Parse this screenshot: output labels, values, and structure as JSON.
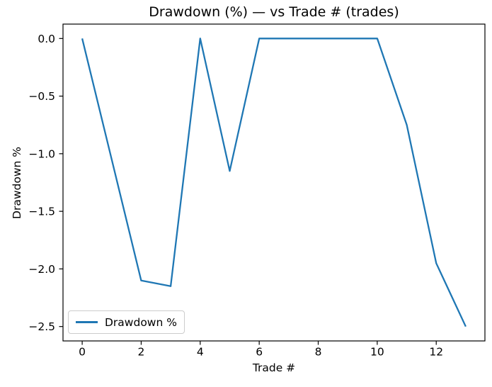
{
  "chart_data": {
    "type": "line",
    "title": "Drawdown (%) — vs Trade # (trades)",
    "xlabel": "Trade #",
    "ylabel": "Drawdown %",
    "x": [
      0,
      1,
      2,
      3,
      4,
      5,
      6,
      7,
      8,
      9,
      10,
      11,
      12,
      13
    ],
    "series": [
      {
        "name": "Drawdown %",
        "color": "#1f77b4",
        "values": [
          0.0,
          -1.05,
          -2.1,
          -2.15,
          0.0,
          -1.15,
          0.0,
          0.0,
          0.0,
          0.0,
          0.0,
          -0.75,
          -1.95,
          -2.5
        ]
      }
    ],
    "xlim": [
      -0.65,
      13.65
    ],
    "ylim": [
      -2.625,
      0.125
    ],
    "xticks": [
      0,
      2,
      4,
      6,
      8,
      10,
      12
    ],
    "yticks": [
      0.0,
      -0.5,
      -1.0,
      -1.5,
      -2.0,
      -2.5
    ],
    "grid": false,
    "legend": {
      "position": "lower left",
      "entries": [
        "Drawdown %"
      ]
    },
    "axes_color": "#000000",
    "background": "#ffffff"
  }
}
